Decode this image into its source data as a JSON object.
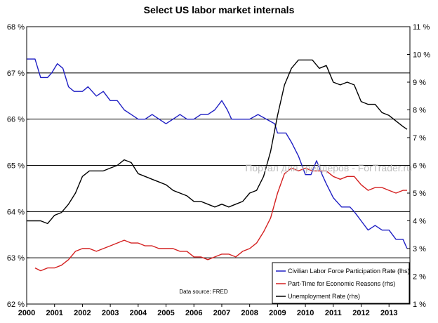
{
  "chart_data": {
    "type": "line",
    "title": "Select US labor market internals",
    "left_axis": {
      "range": [
        62,
        68
      ],
      "ticks": [
        62,
        63,
        64,
        65,
        66,
        67,
        68
      ],
      "tick_labels": [
        "62 %",
        "63 %",
        "64 %",
        "65 %",
        "66 %",
        "67 %",
        "68 %"
      ]
    },
    "right_axis": {
      "range": [
        1,
        11
      ],
      "ticks": [
        1,
        2,
        3,
        4,
        5,
        6,
        7,
        8,
        9,
        10,
        11
      ],
      "tick_labels": [
        "1 %",
        "2 %",
        "3 %",
        "4 %",
        "5 %",
        "6 %",
        "7 %",
        "8 %",
        "9 %",
        "10 %",
        "11 %"
      ]
    },
    "x_axis": {
      "range": [
        2000,
        2013.75
      ],
      "ticks": [
        2000,
        2001,
        2002,
        2003,
        2004,
        2005,
        2006,
        2007,
        2008,
        2009,
        2010,
        2011,
        2012,
        2013
      ],
      "tick_labels": [
        "2000",
        "2001",
        "2002",
        "2003",
        "2004",
        "2005",
        "2006",
        "2007",
        "2008",
        "2009",
        "2010",
        "2011",
        "2012",
        "2013"
      ]
    },
    "gridlines": [
      63,
      64,
      65,
      66,
      67
    ],
    "series": [
      {
        "name": "Civilian Labor Force Participation Rate (lhs)",
        "axis": "left",
        "color": "#1f1fc4",
        "points": [
          [
            2000,
            67.3
          ],
          [
            2000.3,
            67.3
          ],
          [
            2000.5,
            66.9
          ],
          [
            2000.75,
            66.9
          ],
          [
            2000.9,
            67.0
          ],
          [
            2001.1,
            67.2
          ],
          [
            2001.3,
            67.1
          ],
          [
            2001.5,
            66.7
          ],
          [
            2001.7,
            66.6
          ],
          [
            2002.0,
            66.6
          ],
          [
            2002.2,
            66.7
          ],
          [
            2002.5,
            66.5
          ],
          [
            2002.75,
            66.6
          ],
          [
            2003.0,
            66.4
          ],
          [
            2003.25,
            66.4
          ],
          [
            2003.5,
            66.2
          ],
          [
            2003.75,
            66.1
          ],
          [
            2004.0,
            66.0
          ],
          [
            2004.25,
            66.0
          ],
          [
            2004.5,
            66.1
          ],
          [
            2004.75,
            66.0
          ],
          [
            2005.0,
            65.9
          ],
          [
            2005.25,
            66.0
          ],
          [
            2005.5,
            66.1
          ],
          [
            2005.75,
            66.0
          ],
          [
            2006.0,
            66.0
          ],
          [
            2006.25,
            66.1
          ],
          [
            2006.5,
            66.1
          ],
          [
            2006.75,
            66.2
          ],
          [
            2007.0,
            66.4
          ],
          [
            2007.2,
            66.2
          ],
          [
            2007.35,
            66.0
          ],
          [
            2007.6,
            66.0
          ],
          [
            2007.9,
            66.0
          ],
          [
            2008.0,
            66.0
          ],
          [
            2008.3,
            66.1
          ],
          [
            2008.6,
            66.0
          ],
          [
            2008.9,
            65.9
          ],
          [
            2009.0,
            65.7
          ],
          [
            2009.3,
            65.7
          ],
          [
            2009.5,
            65.5
          ],
          [
            2009.75,
            65.2
          ],
          [
            2010.0,
            64.8
          ],
          [
            2010.2,
            64.8
          ],
          [
            2010.4,
            65.1
          ],
          [
            2010.6,
            64.8
          ],
          [
            2010.75,
            64.6
          ],
          [
            2011.0,
            64.3
          ],
          [
            2011.3,
            64.1
          ],
          [
            2011.6,
            64.1
          ],
          [
            2011.75,
            64.0
          ],
          [
            2012.0,
            63.8
          ],
          [
            2012.25,
            63.6
          ],
          [
            2012.5,
            63.7
          ],
          [
            2012.75,
            63.6
          ],
          [
            2013.0,
            63.6
          ],
          [
            2013.25,
            63.4
          ],
          [
            2013.5,
            63.4
          ],
          [
            2013.65,
            63.2
          ]
        ]
      },
      {
        "name": "Part-Time for Economic Reasons (rhs)",
        "axis": "right",
        "color": "#d42020",
        "points": [
          [
            2000.3,
            2.3
          ],
          [
            2000.5,
            2.2
          ],
          [
            2000.75,
            2.3
          ],
          [
            2001.0,
            2.3
          ],
          [
            2001.25,
            2.4
          ],
          [
            2001.5,
            2.6
          ],
          [
            2001.75,
            2.9
          ],
          [
            2002.0,
            3.0
          ],
          [
            2002.25,
            3.0
          ],
          [
            2002.5,
            2.9
          ],
          [
            2002.75,
            3.0
          ],
          [
            2003.0,
            3.1
          ],
          [
            2003.25,
            3.2
          ],
          [
            2003.5,
            3.3
          ],
          [
            2003.75,
            3.2
          ],
          [
            2004.0,
            3.2
          ],
          [
            2004.25,
            3.1
          ],
          [
            2004.5,
            3.1
          ],
          [
            2004.75,
            3.0
          ],
          [
            2005.0,
            3.0
          ],
          [
            2005.25,
            3.0
          ],
          [
            2005.5,
            2.9
          ],
          [
            2005.75,
            2.9
          ],
          [
            2006.0,
            2.7
          ],
          [
            2006.25,
            2.7
          ],
          [
            2006.5,
            2.6
          ],
          [
            2006.75,
            2.7
          ],
          [
            2007.0,
            2.8
          ],
          [
            2007.25,
            2.8
          ],
          [
            2007.5,
            2.7
          ],
          [
            2007.75,
            2.9
          ],
          [
            2008.0,
            3.0
          ],
          [
            2008.25,
            3.2
          ],
          [
            2008.5,
            3.6
          ],
          [
            2008.75,
            4.1
          ],
          [
            2009.0,
            5.0
          ],
          [
            2009.25,
            5.7
          ],
          [
            2009.5,
            5.9
          ],
          [
            2009.75,
            5.8
          ],
          [
            2010.0,
            5.9
          ],
          [
            2010.25,
            5.8
          ],
          [
            2010.5,
            5.8
          ],
          [
            2010.75,
            5.8
          ],
          [
            2011.0,
            5.6
          ],
          [
            2011.25,
            5.5
          ],
          [
            2011.5,
            5.6
          ],
          [
            2011.75,
            5.6
          ],
          [
            2012.0,
            5.3
          ],
          [
            2012.25,
            5.1
          ],
          [
            2012.5,
            5.2
          ],
          [
            2012.75,
            5.2
          ],
          [
            2013.0,
            5.1
          ],
          [
            2013.25,
            5.0
          ],
          [
            2013.5,
            5.1
          ],
          [
            2013.65,
            5.1
          ]
        ]
      },
      {
        "name": "Unemployment Rate (rhs)",
        "axis": "right",
        "color": "#000000",
        "points": [
          [
            2000,
            4.0
          ],
          [
            2000.25,
            4.0
          ],
          [
            2000.5,
            4.0
          ],
          [
            2000.75,
            3.9
          ],
          [
            2001.0,
            4.2
          ],
          [
            2001.25,
            4.3
          ],
          [
            2001.5,
            4.6
          ],
          [
            2001.75,
            5.0
          ],
          [
            2002.0,
            5.6
          ],
          [
            2002.25,
            5.8
          ],
          [
            2002.5,
            5.8
          ],
          [
            2002.75,
            5.8
          ],
          [
            2003.0,
            5.9
          ],
          [
            2003.25,
            6.0
          ],
          [
            2003.5,
            6.2
          ],
          [
            2003.75,
            6.1
          ],
          [
            2004.0,
            5.7
          ],
          [
            2004.25,
            5.6
          ],
          [
            2004.5,
            5.5
          ],
          [
            2004.75,
            5.4
          ],
          [
            2005.0,
            5.3
          ],
          [
            2005.25,
            5.1
          ],
          [
            2005.5,
            5.0
          ],
          [
            2005.75,
            4.9
          ],
          [
            2006.0,
            4.7
          ],
          [
            2006.25,
            4.7
          ],
          [
            2006.5,
            4.6
          ],
          [
            2006.75,
            4.5
          ],
          [
            2007.0,
            4.6
          ],
          [
            2007.25,
            4.5
          ],
          [
            2007.5,
            4.6
          ],
          [
            2007.75,
            4.7
          ],
          [
            2008.0,
            5.0
          ],
          [
            2008.25,
            5.1
          ],
          [
            2008.5,
            5.6
          ],
          [
            2008.75,
            6.5
          ],
          [
            2009.0,
            7.8
          ],
          [
            2009.25,
            8.9
          ],
          [
            2009.5,
            9.5
          ],
          [
            2009.75,
            9.8
          ],
          [
            2010.0,
            9.8
          ],
          [
            2010.25,
            9.8
          ],
          [
            2010.5,
            9.5
          ],
          [
            2010.75,
            9.6
          ],
          [
            2011.0,
            9.0
          ],
          [
            2011.25,
            8.9
          ],
          [
            2011.5,
            9.0
          ],
          [
            2011.75,
            8.9
          ],
          [
            2012.0,
            8.3
          ],
          [
            2012.25,
            8.2
          ],
          [
            2012.5,
            8.2
          ],
          [
            2012.75,
            7.9
          ],
          [
            2013.0,
            7.8
          ],
          [
            2013.25,
            7.6
          ],
          [
            2013.5,
            7.4
          ],
          [
            2013.65,
            7.3
          ]
        ]
      }
    ],
    "legend": {
      "placement": "bottom-right",
      "entries": [
        "Civilian Labor Force Participation Rate (lhs)",
        "Part-Time for Economic Reasons (rhs)",
        "Unemployment Rate (rhs)"
      ]
    },
    "annotations": {
      "source": "Data source: FRED",
      "watermark": "Портал для трейдеров - ForTrader.ru"
    }
  }
}
